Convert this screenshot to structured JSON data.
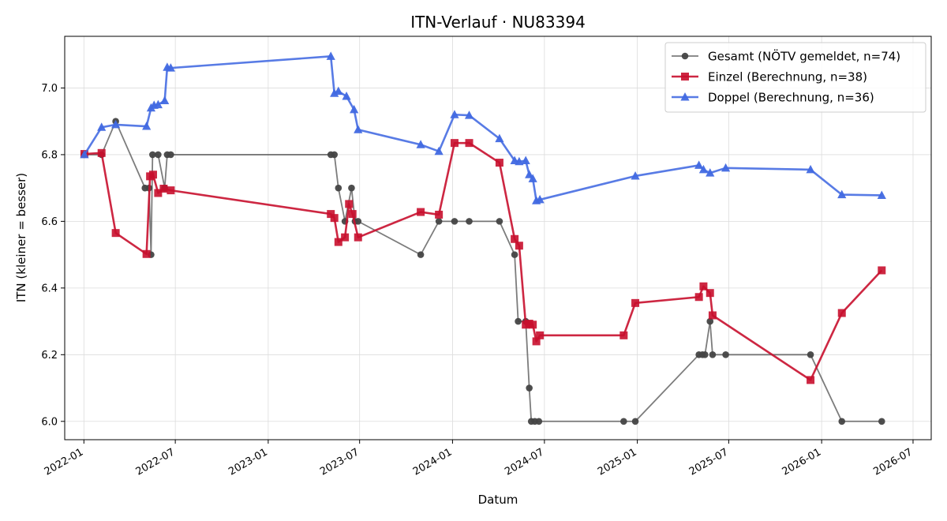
{
  "chart_data": {
    "type": "line",
    "title": "ITN-Verlauf · NU83394",
    "xlabel": "Datum",
    "ylabel": "ITN  (kleiner = besser)",
    "xlim": [
      "2021-11-24",
      "2026-08-06"
    ],
    "ylim": [
      5.945,
      7.155
    ],
    "x_ticks": [
      "2022-01-01",
      "2022-07-01",
      "2023-01-01",
      "2023-07-01",
      "2024-01-01",
      "2024-07-01",
      "2025-01-01",
      "2025-07-01",
      "2026-01-01",
      "2026-07-01"
    ],
    "x_tick_labels": [
      "2022-01",
      "2022-07",
      "2023-01",
      "2023-07",
      "2024-01",
      "2024-07",
      "2025-01",
      "2025-07",
      "2026-01",
      "2026-07"
    ],
    "y_ticks": [
      6.0,
      6.2,
      6.4,
      6.6,
      6.8,
      7.0
    ],
    "y_tick_labels": [
      "6.0",
      "6.2",
      "6.4",
      "6.6",
      "6.8",
      "7.0"
    ],
    "grid": true,
    "legend_position": "top-right",
    "series": [
      {
        "name": "Gesamt (NÖTV gemeldet, n=74)",
        "color": "#444444",
        "marker": "circle",
        "points": [
          [
            "2022-01-02",
            6.8
          ],
          [
            "2022-02-05",
            6.8
          ],
          [
            "2022-03-05",
            6.9
          ],
          [
            "2022-05-02",
            6.7
          ],
          [
            "2022-05-10",
            6.7
          ],
          [
            "2022-05-14",
            6.5
          ],
          [
            "2022-05-17",
            6.8
          ],
          [
            "2022-05-28",
            6.8
          ],
          [
            "2022-06-10",
            6.7
          ],
          [
            "2022-06-15",
            6.8
          ],
          [
            "2022-06-22",
            6.8
          ],
          [
            "2023-05-05",
            6.8
          ],
          [
            "2023-05-12",
            6.8
          ],
          [
            "2023-05-20",
            6.7
          ],
          [
            "2023-06-02",
            6.6
          ],
          [
            "2023-06-15",
            6.7
          ],
          [
            "2023-06-22",
            6.6
          ],
          [
            "2023-06-28",
            6.6
          ],
          [
            "2023-10-30",
            6.5
          ],
          [
            "2023-12-05",
            6.6
          ],
          [
            "2024-01-05",
            6.6
          ],
          [
            "2024-02-03",
            6.6
          ],
          [
            "2024-04-03",
            6.6
          ],
          [
            "2024-05-03",
            6.5
          ],
          [
            "2024-05-10",
            6.3
          ],
          [
            "2024-05-25",
            6.3
          ],
          [
            "2024-06-01",
            6.1
          ],
          [
            "2024-06-05",
            6.0
          ],
          [
            "2024-06-12",
            6.0
          ],
          [
            "2024-06-20",
            6.0
          ],
          [
            "2024-12-05",
            6.0
          ],
          [
            "2024-12-28",
            6.0
          ],
          [
            "2025-05-03",
            6.2
          ],
          [
            "2025-05-10",
            6.2
          ],
          [
            "2025-05-15",
            6.2
          ],
          [
            "2025-05-25",
            6.3
          ],
          [
            "2025-05-30",
            6.2
          ],
          [
            "2025-06-25",
            6.2
          ],
          [
            "2025-12-10",
            6.2
          ],
          [
            "2026-02-10",
            6.0
          ],
          [
            "2026-04-30",
            6.0
          ]
        ]
      },
      {
        "name": "Einzel (Berechnung, n=38)",
        "color": "#c8102e",
        "marker": "square",
        "points": [
          [
            "2022-01-02",
            6.802
          ],
          [
            "2022-02-05",
            6.805
          ],
          [
            "2022-03-05",
            6.565
          ],
          [
            "2022-05-05",
            6.502
          ],
          [
            "2022-05-12",
            6.735
          ],
          [
            "2022-05-18",
            6.74
          ],
          [
            "2022-05-28",
            6.685
          ],
          [
            "2022-06-08",
            6.698
          ],
          [
            "2022-06-22",
            6.693
          ],
          [
            "2023-05-05",
            6.622
          ],
          [
            "2023-05-12",
            6.61
          ],
          [
            "2023-05-20",
            6.538
          ],
          [
            "2023-06-02",
            6.552
          ],
          [
            "2023-06-10",
            6.652
          ],
          [
            "2023-06-17",
            6.622
          ],
          [
            "2023-06-28",
            6.552
          ],
          [
            "2023-10-30",
            6.628
          ],
          [
            "2023-12-05",
            6.62
          ],
          [
            "2024-01-05",
            6.835
          ],
          [
            "2024-02-03",
            6.835
          ],
          [
            "2024-04-03",
            6.776
          ],
          [
            "2024-05-03",
            6.547
          ],
          [
            "2024-05-12",
            6.527
          ],
          [
            "2024-05-25",
            6.29
          ],
          [
            "2024-06-01",
            6.293
          ],
          [
            "2024-06-08",
            6.29
          ],
          [
            "2024-06-15",
            6.24
          ],
          [
            "2024-06-22",
            6.258
          ],
          [
            "2024-12-05",
            6.258
          ],
          [
            "2024-12-28",
            6.355
          ],
          [
            "2025-05-03",
            6.373
          ],
          [
            "2025-05-12",
            6.405
          ],
          [
            "2025-05-25",
            6.385
          ],
          [
            "2025-05-30",
            6.318
          ],
          [
            "2025-12-10",
            6.124
          ],
          [
            "2026-02-10",
            6.325
          ],
          [
            "2026-04-30",
            6.453
          ]
        ]
      },
      {
        "name": "Doppel (Berechnung, n=36)",
        "color": "#4169e1",
        "marker": "triangle",
        "points": [
          [
            "2022-01-02",
            6.8
          ],
          [
            "2022-02-05",
            6.882
          ],
          [
            "2022-03-05",
            6.89
          ],
          [
            "2022-05-05",
            6.885
          ],
          [
            "2022-05-14",
            6.94
          ],
          [
            "2022-05-20",
            6.948
          ],
          [
            "2022-05-28",
            6.95
          ],
          [
            "2022-06-10",
            6.962
          ],
          [
            "2022-06-15",
            7.062
          ],
          [
            "2022-06-22",
            7.06
          ],
          [
            "2023-05-05",
            7.095
          ],
          [
            "2023-05-12",
            6.984
          ],
          [
            "2023-05-20",
            6.99
          ],
          [
            "2023-06-05",
            6.975
          ],
          [
            "2023-06-20",
            6.935
          ],
          [
            "2023-06-28",
            6.875
          ],
          [
            "2023-10-30",
            6.83
          ],
          [
            "2023-12-05",
            6.81
          ],
          [
            "2024-01-05",
            6.92
          ],
          [
            "2024-02-03",
            6.918
          ],
          [
            "2024-04-03",
            6.848
          ],
          [
            "2024-05-03",
            6.782
          ],
          [
            "2024-05-12",
            6.779
          ],
          [
            "2024-05-25",
            6.782
          ],
          [
            "2024-06-01",
            6.74
          ],
          [
            "2024-06-08",
            6.728
          ],
          [
            "2024-06-15",
            6.662
          ],
          [
            "2024-06-22",
            6.665
          ],
          [
            "2024-12-28",
            6.736
          ],
          [
            "2025-05-03",
            6.768
          ],
          [
            "2025-05-12",
            6.755
          ],
          [
            "2025-05-25",
            6.745
          ],
          [
            "2025-06-25",
            6.76
          ],
          [
            "2025-12-10",
            6.755
          ],
          [
            "2026-02-10",
            6.68
          ],
          [
            "2026-04-30",
            6.678
          ]
        ]
      }
    ]
  }
}
